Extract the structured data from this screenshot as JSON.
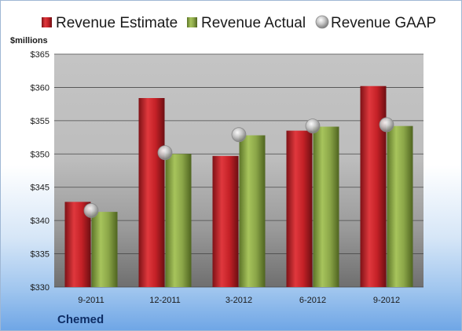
{
  "chart_data": {
    "type": "bar",
    "title": "",
    "ylabel": "$millions",
    "xlabel": "",
    "company": "Chemed",
    "categories": [
      "9-2011",
      "12-2011",
      "3-2012",
      "6-2012",
      "9-2012"
    ],
    "ylim": [
      330,
      365
    ],
    "yticks": [
      330,
      335,
      340,
      345,
      350,
      355,
      360,
      365
    ],
    "ytick_labels": [
      "$330",
      "$335",
      "$340",
      "$345",
      "$350",
      "$355",
      "$360",
      "$365"
    ],
    "grid": true,
    "legend_position": "top",
    "series": [
      {
        "name": "Revenue Estimate",
        "type": "bar",
        "color": "#c8262b",
        "values": [
          342.8,
          358.4,
          349.7,
          353.5,
          360.2
        ]
      },
      {
        "name": "Revenue Actual",
        "type": "bar",
        "color": "#8faa4a",
        "values": [
          341.3,
          350.0,
          352.8,
          354.1,
          354.2
        ]
      },
      {
        "name": "Revenue GAAP",
        "type": "marker",
        "color": "#b7b7b7",
        "values": [
          341.5,
          350.2,
          352.9,
          354.2,
          354.4
        ]
      }
    ]
  }
}
